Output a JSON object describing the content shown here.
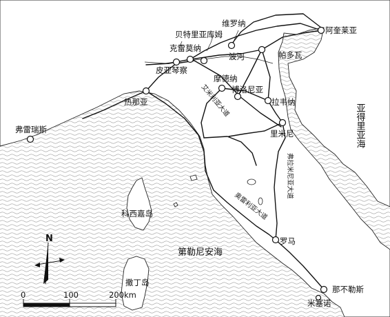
{
  "cities": {
    "verona": "维罗纳",
    "aquileia": "阿奎莱亚",
    "bedriacum": "贝特里亚库姆",
    "cremona": "克雷莫纳",
    "patavium": "帕多瓦",
    "placentia": "皮亚琴察",
    "mutina": "摩德纳",
    "bononia": "博洛尼亚",
    "ravenna": "拉韦纳",
    "genua": "热那亚",
    "ariminum": "里米尼",
    "forum_julii": "弗雷瑞斯",
    "roma": "罗马",
    "neapolis": "那不勒斯",
    "misenum": "米塞诺"
  },
  "river": {
    "po": "波河"
  },
  "islands": {
    "corsica": "科西嘉岛",
    "sardinia": "撒丁岛"
  },
  "seas": {
    "adriatic": "亚得里亚海",
    "tyrrhenian": "第勒尼安海"
  },
  "roads": {
    "aemilia": "艾米利亚大道",
    "flaminia": "弗拉米尼亚大道",
    "aurelia": "奥雷利亚大道"
  },
  "compass": {
    "north": "N"
  },
  "scale": {
    "tick0": "0",
    "tick1": "100",
    "tick2": "200km"
  }
}
